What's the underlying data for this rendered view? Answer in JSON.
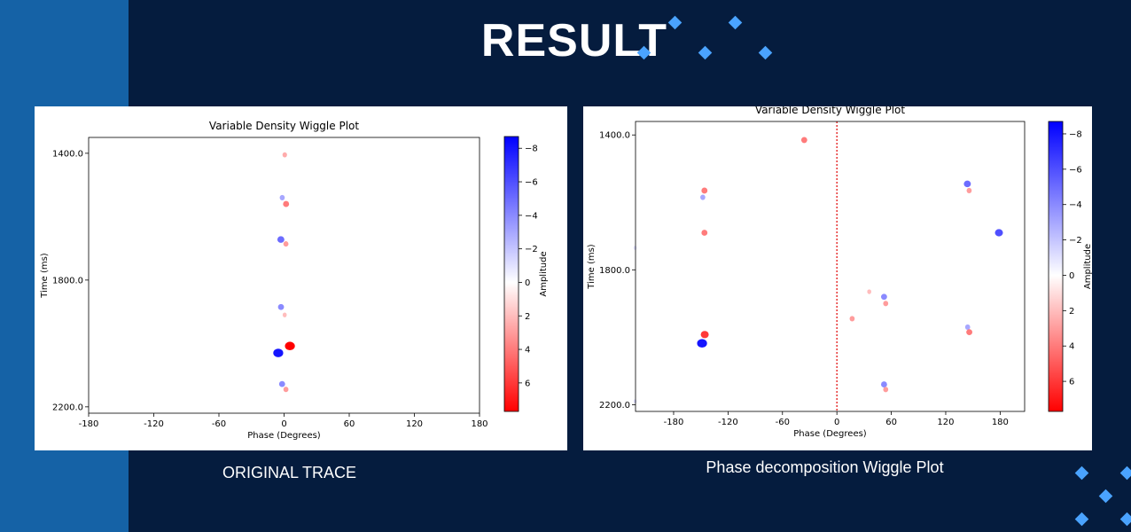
{
  "slide": {
    "title": "RESULT",
    "accent_color": "#4aa3ff",
    "left_band_color": "#1562a6",
    "background_color": "#051c3e"
  },
  "captions": {
    "left": "ORIGINAL TRACE",
    "right": "Phase decomposition Wiggle Plot"
  },
  "chart_data": [
    {
      "type": "heatmap",
      "title": "Variable Density Wiggle Plot",
      "xlabel": "Phase (Degrees)",
      "ylabel": "Time (ms)",
      "xlim": [
        -180,
        180
      ],
      "ylim": [
        1350,
        2220
      ],
      "y_inverted": true,
      "x_ticks": [
        -180,
        -120,
        -60,
        0,
        60,
        120,
        180
      ],
      "x_tick_labels": [
        "-180",
        "-120",
        "-60",
        "0",
        "60",
        "120",
        "180"
      ],
      "y_ticks": [
        1400,
        1800,
        2200
      ],
      "y_tick_labels": [
        "1400.0",
        "1800.0",
        "2200.0"
      ],
      "colorbar": {
        "label": "Amplitude",
        "range": [
          -8.7,
          7.7
        ],
        "ticks": [
          -8,
          -6,
          -4,
          -2,
          0,
          2,
          4,
          6
        ],
        "tick_labels": [
          "−8",
          "−6",
          "−4",
          "−2",
          "0",
          "2",
          "4",
          "6"
        ],
        "colormap": "bwr_r"
      },
      "grid": false,
      "events": [
        {
          "phase": 0,
          "time": 1405,
          "amp": 2.5
        },
        {
          "phase": -1,
          "time": 1540,
          "amp": -3
        },
        {
          "phase": 1,
          "time": 1560,
          "amp": 4
        },
        {
          "phase": -2,
          "time": 1672,
          "amp": -5
        },
        {
          "phase": 1,
          "time": 1686,
          "amp": 3
        },
        {
          "phase": -2,
          "time": 1885,
          "amp": -4
        },
        {
          "phase": 0,
          "time": 1910,
          "amp": 2
        },
        {
          "phase": 4,
          "time": 2008,
          "amp": 8
        },
        {
          "phase": -4,
          "time": 2030,
          "amp": -8
        },
        {
          "phase": -1,
          "time": 2128,
          "amp": -4
        },
        {
          "phase": 1,
          "time": 2145,
          "amp": 3
        }
      ]
    },
    {
      "type": "heatmap",
      "title": "Variable Density Wiggle Plot",
      "xlabel": "Phase (Degrees)",
      "ylabel": "Time (ms)",
      "xlim": [
        -222,
        207
      ],
      "ylim": [
        1360,
        2220
      ],
      "y_inverted": true,
      "x_ticks": [
        -180,
        -120,
        -60,
        0,
        60,
        120,
        180
      ],
      "x_tick_labels": [
        "-180",
        "-120",
        "-60",
        "0",
        "60",
        "120",
        "180"
      ],
      "y_ticks": [
        1400,
        1800,
        2200
      ],
      "y_tick_labels": [
        "1400.0",
        "1800.0",
        "2200.0"
      ],
      "zero_line": {
        "x": 0,
        "color": "#e00000",
        "style": "dotted"
      },
      "colorbar": {
        "label": "Amplitude",
        "range": [
          -8.7,
          7.7
        ],
        "ticks": [
          -8,
          -6,
          -4,
          -2,
          0,
          2,
          4,
          6
        ],
        "tick_labels": [
          "−8",
          "−6",
          "−4",
          "−2",
          "0",
          "2",
          "4",
          "6"
        ],
        "colormap": "bwr_r"
      },
      "grid": false,
      "events": [
        {
          "phase": -37,
          "time": 1415,
          "amp": 4
        },
        {
          "phase": -147,
          "time": 1565,
          "amp": 4
        },
        {
          "phase": -147,
          "time": 1585,
          "amp": -3
        },
        {
          "phase": 145,
          "time": 1545,
          "amp": -5
        },
        {
          "phase": 145,
          "time": 1565,
          "amp": 3
        },
        {
          "phase": -147,
          "time": 1690,
          "amp": 4
        },
        {
          "phase": 180,
          "time": 1690,
          "amp": -6
        },
        {
          "phase": -222,
          "time": 1735,
          "amp": -1
        },
        {
          "phase": 35,
          "time": 1865,
          "amp": 2
        },
        {
          "phase": 53,
          "time": 1880,
          "amp": -4
        },
        {
          "phase": 53,
          "time": 1900,
          "amp": 3
        },
        {
          "phase": 16,
          "time": 1945,
          "amp": 3
        },
        {
          "phase": 145,
          "time": 1970,
          "amp": -3
        },
        {
          "phase": 145,
          "time": 1985,
          "amp": 4
        },
        {
          "phase": -147,
          "time": 1992,
          "amp": 6
        },
        {
          "phase": -147,
          "time": 2018,
          "amp": -8
        },
        {
          "phase": 53,
          "time": 2140,
          "amp": -4
        },
        {
          "phase": 53,
          "time": 2155,
          "amp": 3
        },
        {
          "phase": -222,
          "time": 2190,
          "amp": -1
        }
      ]
    }
  ]
}
